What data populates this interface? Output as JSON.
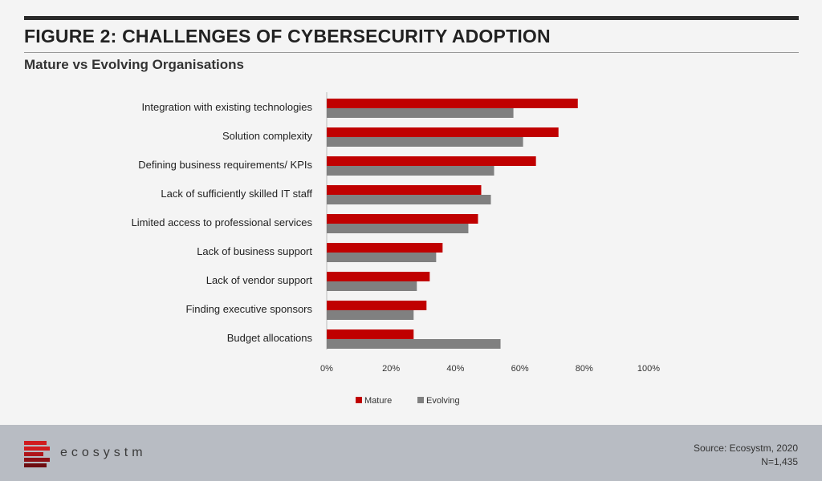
{
  "header": {
    "title": "FIGURE 2: CHALLENGES OF CYBERSECURITY ADOPTION",
    "subtitle": "Mature vs Evolving Organisations"
  },
  "footer": {
    "brand": "ecosystm",
    "source": "Source: Ecosystm, 2020",
    "n": "N=1,435"
  },
  "colors": {
    "mature": "#c00000",
    "evolving": "#808080"
  },
  "chart_data": {
    "type": "bar",
    "orientation": "horizontal",
    "categories": [
      "Integration with existing technologies",
      "Solution complexity",
      "Defining business requirements/ KPIs",
      "Lack of sufficiently skilled IT staff",
      "Limited access to professional services",
      "Lack of business support",
      "Lack of vendor support",
      "Finding executive sponsors",
      "Budget allocations"
    ],
    "series": [
      {
        "name": "Mature",
        "color": "#c00000",
        "values": [
          78,
          72,
          65,
          48,
          47,
          36,
          32,
          31,
          27
        ]
      },
      {
        "name": "Evolving",
        "color": "#808080",
        "values": [
          58,
          61,
          52,
          51,
          44,
          34,
          28,
          27,
          54
        ]
      }
    ],
    "xlim": [
      0,
      100
    ],
    "xticks": [
      "0%",
      "20%",
      "40%",
      "60%",
      "80%",
      "100%"
    ],
    "grid": false,
    "legend": "bottom"
  }
}
